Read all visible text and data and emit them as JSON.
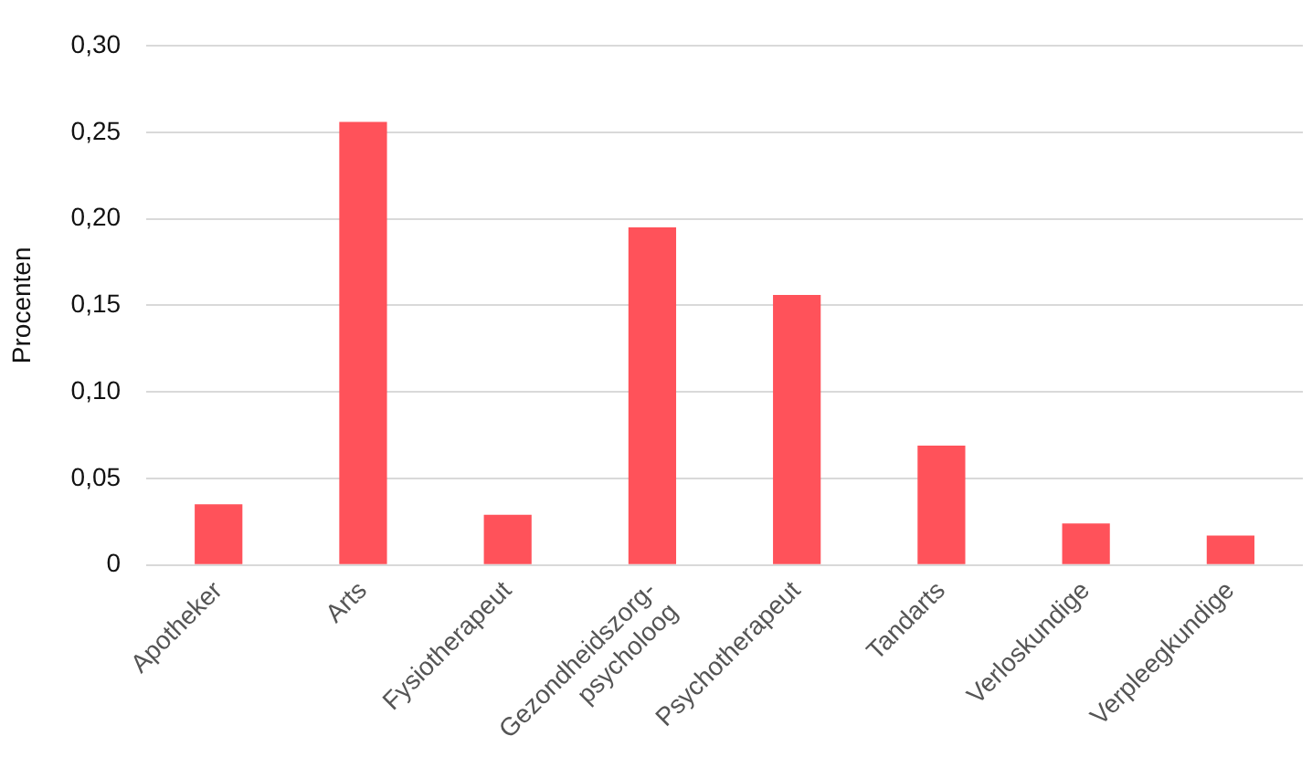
{
  "chart_data": {
    "type": "bar",
    "ylabel": "Procenten",
    "categories": [
      "Apotheker",
      "Arts",
      "Fysiotherapeut",
      "Gezondheidszorg-\npsycholoog",
      "Psychotherapeut",
      "Tandarts",
      "Verloskundige",
      "Verpleegkundige"
    ],
    "values": [
      0.035,
      0.256,
      0.029,
      0.195,
      0.156,
      0.069,
      0.024,
      0.017
    ],
    "color": "#ff525a",
    "ylim": [
      0,
      0.3
    ],
    "yticks": [
      {
        "value": 0,
        "label": "0"
      },
      {
        "value": 0.05,
        "label": "0,05"
      },
      {
        "value": 0.1,
        "label": "0,10"
      },
      {
        "value": 0.15,
        "label": "0,15"
      },
      {
        "value": 0.2,
        "label": "0,20"
      },
      {
        "value": 0.25,
        "label": "0,25"
      },
      {
        "value": 0.3,
        "label": "0,30"
      }
    ],
    "grid": "y",
    "legend": false
  }
}
